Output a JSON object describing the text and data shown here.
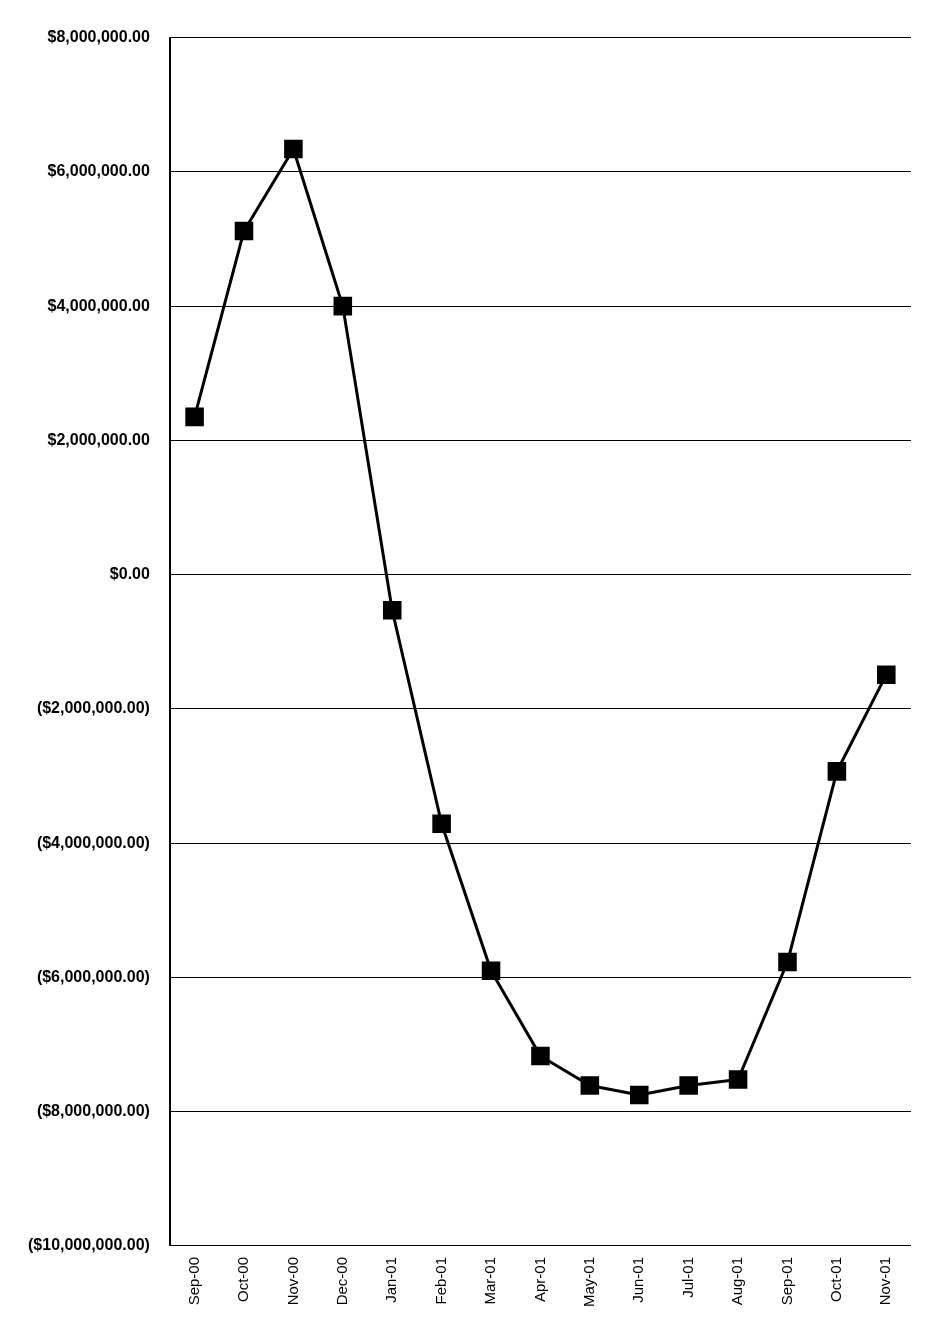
{
  "chart_data": {
    "type": "line",
    "categories": [
      "Sep-00",
      "Oct-00",
      "Nov-00",
      "Dec-00",
      "Jan-01",
      "Feb-01",
      "Mar-01",
      "Apr-01",
      "May-01",
      "Jun-01",
      "Jul-01",
      "Aug-01",
      "Sep-01",
      "Oct-01",
      "Nov-01"
    ],
    "series": [
      {
        "color": "#000000",
        "values": [
          2350000,
          5120000,
          6340000,
          4000000,
          -530000,
          -3710000,
          -5900000,
          -7170000,
          -7610000,
          -7750000,
          -7610000,
          -7520000,
          -5770000,
          -2930000,
          -1490000
        ]
      }
    ],
    "ylim": [
      -10000000,
      8000000
    ],
    "yticks": [
      {
        "value": -10000000,
        "label": "($10,000,000.00)"
      },
      {
        "value": -8000000,
        "label": "($8,000,000.00)"
      },
      {
        "value": -6000000,
        "label": "($6,000,000.00)"
      },
      {
        "value": -4000000,
        "label": "($4,000,000.00)"
      },
      {
        "value": -2000000,
        "label": "($2,000,000.00)"
      },
      {
        "value": 0,
        "label": "$0.00"
      },
      {
        "value": 2000000,
        "label": "$2,000,000.00"
      },
      {
        "value": 4000000,
        "label": "$4,000,000.00"
      },
      {
        "value": 6000000,
        "label": "$6,000,000.00"
      },
      {
        "value": 8000000,
        "label": "$8,000,000.00"
      }
    ],
    "grid": "y",
    "legend": false,
    "marker": "square",
    "line_style": "solid"
  }
}
